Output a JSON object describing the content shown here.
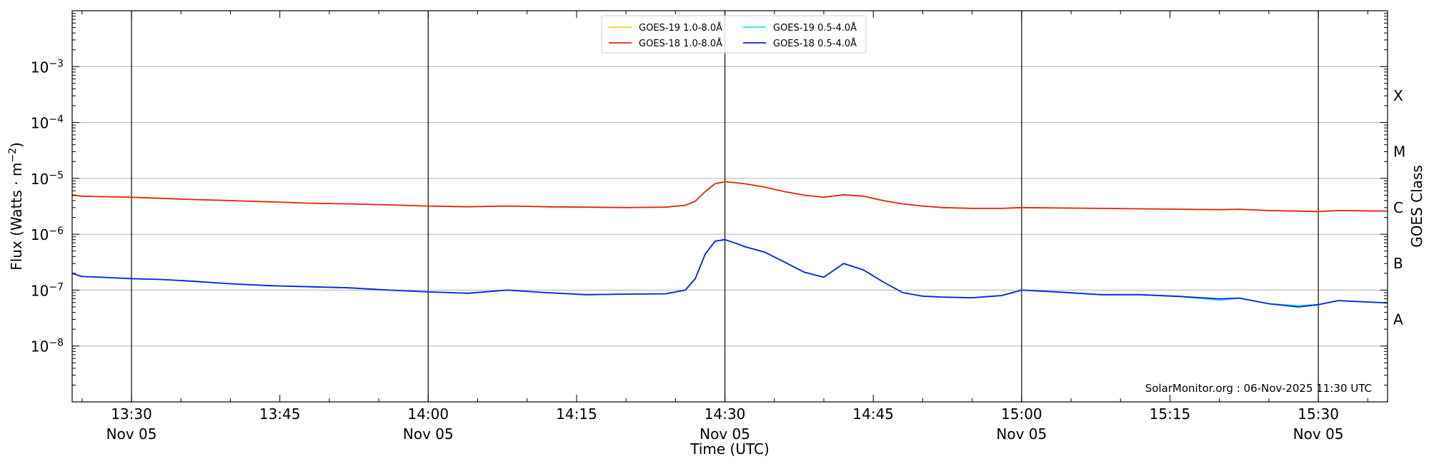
{
  "chart_data": {
    "type": "line",
    "title": "",
    "xlabel": "Time (UTC)",
    "ylabel": "Flux (Watts · m",
    "ylabel_exponent": "−2",
    "ylabel_close": ")",
    "right_label": "GOES Class",
    "y_scale": "log",
    "ylim": [
      1e-09,
      0.01
    ],
    "xlim": [
      "13:24",
      "15:37"
    ],
    "grid": "horizontal",
    "legend_position": "top-center",
    "credit": "SolarMonitor.org : 06-Nov-2025 11:30 UTC",
    "y_ticks": [
      {
        "value": 1e-08,
        "base": "10",
        "exp": "−8"
      },
      {
        "value": 1e-07,
        "base": "10",
        "exp": "−7"
      },
      {
        "value": 1e-06,
        "base": "10",
        "exp": "−6"
      },
      {
        "value": 1e-05,
        "base": "10",
        "exp": "−5"
      },
      {
        "value": 0.0001,
        "base": "10",
        "exp": "−4"
      },
      {
        "value": 0.001,
        "base": "10",
        "exp": "−3"
      }
    ],
    "x_ticks": [
      {
        "time": "13:30",
        "label": "13:30",
        "sub": "Nov 05",
        "major": true
      },
      {
        "time": "13:45",
        "label": "13:45",
        "sub": "",
        "major": false
      },
      {
        "time": "14:00",
        "label": "14:00",
        "sub": "Nov 05",
        "major": true
      },
      {
        "time": "14:15",
        "label": "14:15",
        "sub": "",
        "major": false
      },
      {
        "time": "14:30",
        "label": "14:30",
        "sub": "Nov 05",
        "major": true
      },
      {
        "time": "14:45",
        "label": "14:45",
        "sub": "",
        "major": false
      },
      {
        "time": "15:00",
        "label": "15:00",
        "sub": "Nov 05",
        "major": true
      },
      {
        "time": "15:15",
        "label": "15:15",
        "sub": "",
        "major": false
      },
      {
        "time": "15:30",
        "label": "15:30",
        "sub": "Nov 05",
        "major": true
      }
    ],
    "goes_classes": [
      {
        "label": "X",
        "value": 0.0003
      },
      {
        "label": "M",
        "value": 3e-05
      },
      {
        "label": "C",
        "value": 3e-06
      },
      {
        "label": "B",
        "value": 3e-07
      },
      {
        "label": "A",
        "value": 3e-08
      }
    ],
    "x": [
      "13:24",
      "13:25",
      "13:27",
      "13:30",
      "13:33",
      "13:36",
      "13:40",
      "13:44",
      "13:48",
      "13:52",
      "13:56",
      "14:00",
      "14:04",
      "14:08",
      "14:12",
      "14:16",
      "14:20",
      "14:24",
      "14:26",
      "14:27",
      "14:28",
      "14:29",
      "14:30",
      "14:31",
      "14:32",
      "14:34",
      "14:36",
      "14:38",
      "14:40",
      "14:42",
      "14:44",
      "14:46",
      "14:48",
      "14:50",
      "14:52",
      "14:55",
      "14:58",
      "15:00",
      "15:04",
      "15:08",
      "15:12",
      "15:16",
      "15:20",
      "15:22",
      "15:25",
      "15:28",
      "15:30",
      "15:32",
      "15:37"
    ],
    "series": [
      {
        "name": "GOES-19 1.0-8.0Å",
        "color": "#f2d21b",
        "values": [
          5e-06,
          4.8e-06,
          4.7e-06,
          4.6e-06,
          4.4e-06,
          4.2e-06,
          4e-06,
          3.8e-06,
          3.6e-06,
          3.5e-06,
          3.35e-06,
          3.2e-06,
          3.1e-06,
          3.2e-06,
          3.1e-06,
          3.05e-06,
          3e-06,
          3.05e-06,
          3.3e-06,
          3.9e-06,
          5.8e-06,
          8e-06,
          8.7e-06,
          8.4e-06,
          8e-06,
          7e-06,
          5.8e-06,
          5e-06,
          4.6e-06,
          5.1e-06,
          4.8e-06,
          4e-06,
          3.5e-06,
          3.2e-06,
          3e-06,
          2.9e-06,
          2.9e-06,
          3e-06,
          2.95e-06,
          2.9e-06,
          2.85e-06,
          2.8e-06,
          2.75e-06,
          2.8e-06,
          2.65e-06,
          2.6e-06,
          2.55e-06,
          2.65e-06,
          2.6e-06
        ]
      },
      {
        "name": "GOES-18 1.0-8.0Å",
        "color": "#e8231a",
        "values": [
          5e-06,
          4.8e-06,
          4.7e-06,
          4.6e-06,
          4.4e-06,
          4.2e-06,
          4e-06,
          3.8e-06,
          3.6e-06,
          3.5e-06,
          3.35e-06,
          3.2e-06,
          3.1e-06,
          3.2e-06,
          3.1e-06,
          3.05e-06,
          3e-06,
          3.05e-06,
          3.3e-06,
          3.9e-06,
          5.8e-06,
          8e-06,
          8.7e-06,
          8.4e-06,
          8e-06,
          7e-06,
          5.8e-06,
          5e-06,
          4.6e-06,
          5.1e-06,
          4.8e-06,
          4e-06,
          3.5e-06,
          3.2e-06,
          3e-06,
          2.9e-06,
          2.9e-06,
          3e-06,
          2.95e-06,
          2.9e-06,
          2.85e-06,
          2.8e-06,
          2.75e-06,
          2.8e-06,
          2.65e-06,
          2.6e-06,
          2.55e-06,
          2.65e-06,
          2.6e-06
        ]
      },
      {
        "name": "GOES-19 0.5-4.0Å",
        "color": "#2ee0f0",
        "values": [
          2e-07,
          1.75e-07,
          1.7e-07,
          1.6e-07,
          1.55e-07,
          1.45e-07,
          1.3e-07,
          1.2e-07,
          1.15e-07,
          1.1e-07,
          1e-07,
          9.3e-08,
          8.8e-08,
          1e-07,
          9e-08,
          8.3e-08,
          8.5e-08,
          8.6e-08,
          1e-07,
          1.6e-07,
          4.4e-07,
          7.5e-07,
          8e-07,
          7e-07,
          6e-07,
          4.8e-07,
          3.2e-07,
          2.1e-07,
          1.7e-07,
          3e-07,
          2.3e-07,
          1.4e-07,
          9e-08,
          7.8e-08,
          7.5e-08,
          7.3e-08,
          8e-08,
          1e-07,
          9.2e-08,
          8.3e-08,
          8.3e-08,
          7.7e-08,
          6.6e-08,
          7.2e-08,
          5.7e-08,
          5.3e-08,
          5.5e-08,
          6.5e-08,
          5.9e-08
        ]
      },
      {
        "name": "GOES-18 0.5-4.0Å",
        "color": "#0a23e0",
        "values": [
          2e-07,
          1.75e-07,
          1.7e-07,
          1.6e-07,
          1.55e-07,
          1.45e-07,
          1.3e-07,
          1.2e-07,
          1.15e-07,
          1.1e-07,
          1e-07,
          9.3e-08,
          8.8e-08,
          1e-07,
          9e-08,
          8.3e-08,
          8.5e-08,
          8.6e-08,
          1e-07,
          1.6e-07,
          4.4e-07,
          7.5e-07,
          8e-07,
          7e-07,
          6e-07,
          4.8e-07,
          3.2e-07,
          2.1e-07,
          1.7e-07,
          3e-07,
          2.3e-07,
          1.4e-07,
          9e-08,
          7.8e-08,
          7.5e-08,
          7.3e-08,
          8e-08,
          1e-07,
          9.2e-08,
          8.3e-08,
          8.3e-08,
          7.7e-08,
          7e-08,
          7.2e-08,
          5.7e-08,
          5e-08,
          5.5e-08,
          6.5e-08,
          5.9e-08
        ]
      }
    ]
  }
}
